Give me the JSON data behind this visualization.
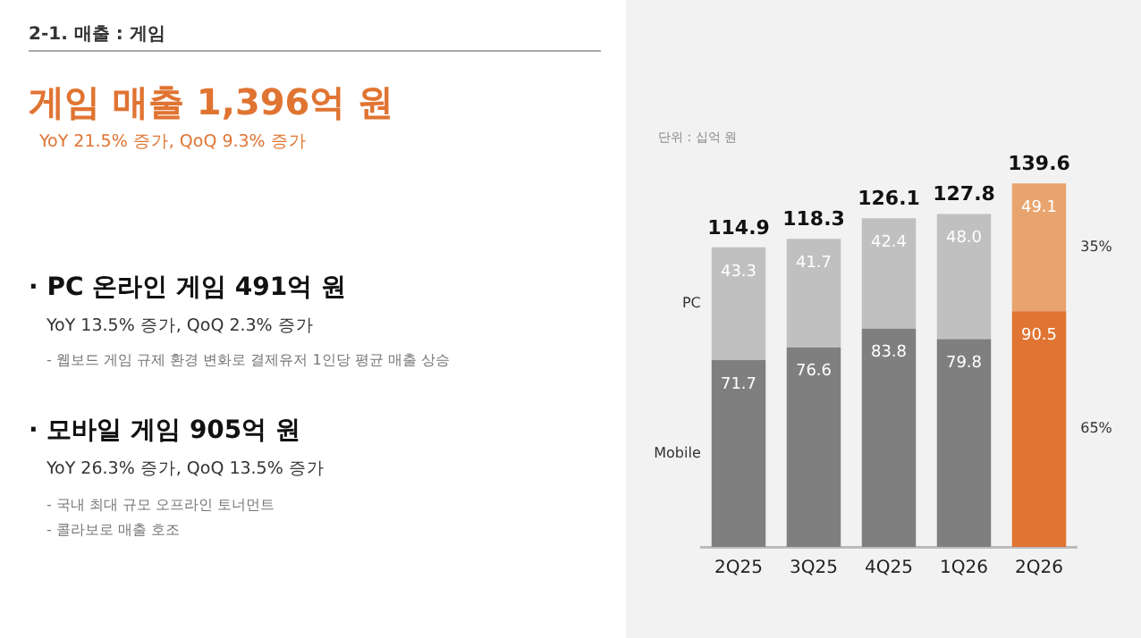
{
  "chart_data": {
    "type": "bar",
    "title": "게임 매출 1,396억 원",
    "subtitle": "YoY 21.5% 증가, QoQ 9.3% 증가",
    "categories": [
      "2Q25",
      "3Q25",
      "4Q25",
      "1Q26",
      "2Q26"
    ],
    "stacked": true,
    "series": [
      {
        "name": "Mobile",
        "colors": [
          "#7f7f7f",
          "#7f7f7f",
          "#7f7f7f",
          "#7f7f7f",
          "#e07432"
        ],
        "values": [
          71.7,
          76.6,
          83.8,
          79.8,
          90.5
        ],
        "value_labels": [
          "71.7",
          "76.6",
          "83.8",
          "79.8",
          "90.5"
        ]
      },
      {
        "name": "PC",
        "colors": [
          "#c0c0c0",
          "#c0c0c0",
          "#c0c0c0",
          "#c0c0c0",
          "#e8a46e"
        ],
        "values": [
          43.3,
          41.7,
          42.4,
          48.0,
          49.1
        ],
        "value_labels": [
          "43.3",
          "41.7",
          "42.4",
          "48.0",
          "49.1"
        ]
      }
    ],
    "totals": [
      "114.9",
      "118.3",
      "126.1",
      "127.8",
      "139.6"
    ],
    "grid": false,
    "legend": false,
    "tick_labels": "x",
    "annotations": [
      "2-1.  매출 : 게임",
      "· PC 온라인 게임 491억 원",
      "YoY 13.5% 증가, QoQ 2.3% 증가",
      "- 웹보드 게임 규제 환경 변화로 결제유저 1인당 평균 매출 상승",
      "· 모바일 게임 905억 원",
      "YoY 26.3% 증가, QoQ 13.5% 증가",
      "- 국내 최대 규모 오프라인 토너먼트",
      "- 콜라보로 매출 호조",
      "단위 : 십억 원",
      "35%",
      "65%"
    ]
  }
}
